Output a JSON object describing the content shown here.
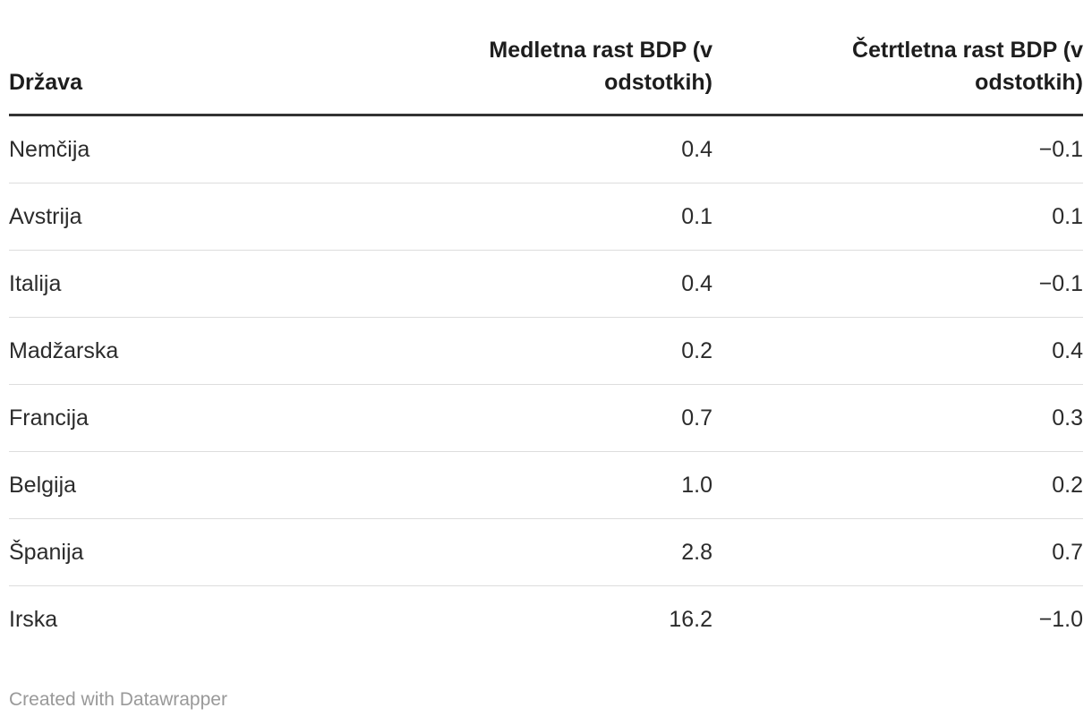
{
  "table": {
    "columns": {
      "country": {
        "label": "Država"
      },
      "yoy": {
        "label": "Medletna rast BDP (v odstotkih)"
      },
      "qoq": {
        "label": "Četrtletna rast BDP (v odstotkih)"
      }
    },
    "rows": [
      {
        "country": "Nemčija",
        "yoy": "0.4",
        "qoq": "−0.1"
      },
      {
        "country": "Avstrija",
        "yoy": "0.1",
        "qoq": "0.1"
      },
      {
        "country": "Italija",
        "yoy": "0.4",
        "qoq": "−0.1"
      },
      {
        "country": "Madžarska",
        "yoy": "0.2",
        "qoq": "0.4"
      },
      {
        "country": "Francija",
        "yoy": "0.7",
        "qoq": "0.3"
      },
      {
        "country": "Belgija",
        "yoy": "1.0",
        "qoq": "0.2"
      },
      {
        "country": "Španija",
        "yoy": "2.8",
        "qoq": "0.7"
      },
      {
        "country": "Irska",
        "yoy": "16.2",
        "qoq": "−1.0"
      }
    ]
  },
  "footer": {
    "attribution": "Created with Datawrapper"
  },
  "colors": {
    "header_text": "#1d1d1d",
    "body_text": "#2b2b2b",
    "header_rule": "#333333",
    "row_separator": "#dddddd",
    "attribution_text": "#999999",
    "background": "#ffffff"
  }
}
